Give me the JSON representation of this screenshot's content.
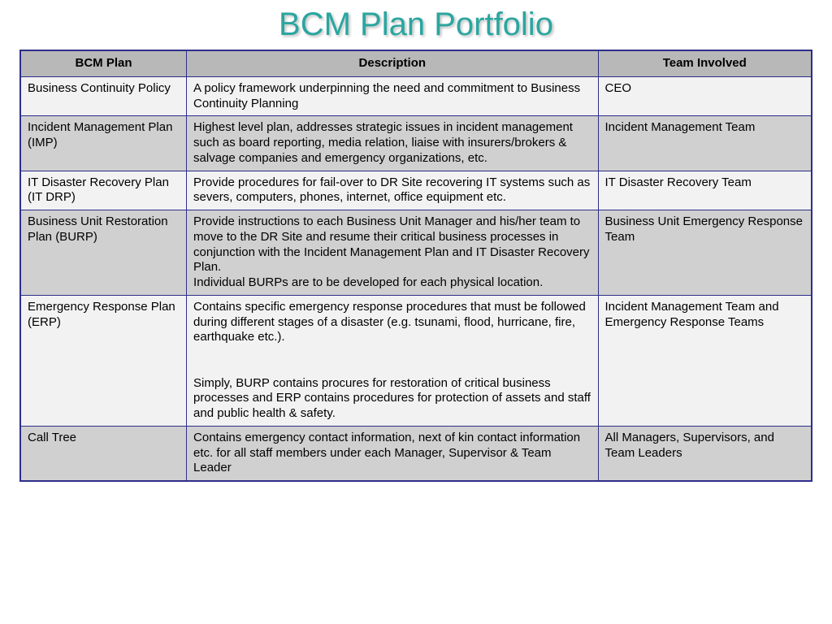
{
  "title": "BCM Plan Portfolio",
  "columns": [
    "BCM Plan",
    "Description",
    "Team Involved"
  ],
  "rows": [
    {
      "plan": "Business Continuity Policy",
      "description": "A policy framework underpinning the need and commitment to Business Continuity Planning",
      "team": "CEO"
    },
    {
      "plan": "Incident Management Plan (IMP)",
      "description": "Highest level plan, addresses strategic issues in incident management such as board reporting, media relation, liaise with insurers/brokers & salvage companies and emergency organizations, etc.",
      "team": "Incident Management Team"
    },
    {
      "plan": "IT Disaster Recovery Plan (IT DRP)",
      "description": "Provide procedures for fail-over to DR Site recovering IT systems such as severs, computers, phones, internet, office equipment etc.",
      "team": "IT Disaster Recovery Team"
    },
    {
      "plan": "Business Unit Restoration Plan (BURP)",
      "description": "Provide instructions to each Business Unit Manager and his/her team to move to the DR Site and resume their critical business processes in conjunction with the Incident Management Plan and IT Disaster Recovery Plan.\nIndividual BURPs are to be developed for each physical location.",
      "team": "Business Unit Emergency Response Team"
    },
    {
      "plan": "Emergency Response Plan (ERP)",
      "description": "Contains specific emergency response procedures that must be followed during different stages of a disaster (e.g. tsunami, flood, hurricane, fire, earthquake etc.).\n\nSimply, BURP contains procures for restoration of critical business processes and ERP contains procedures for protection of assets and staff and public health & safety.",
      "team": "Incident Management Team and Emergency Response Teams"
    },
    {
      "plan": "Call Tree",
      "description": "Contains emergency contact information, next of kin contact information etc. for all staff members under each Manager, Supervisor & Team Leader",
      "team": "All Managers, Supervisors, and Team Leaders"
    }
  ],
  "style": {
    "title_color": "#2aa6a0",
    "title_fontsize": 40,
    "border_color": "#2e2e8a",
    "header_bg": "#b8b8b8",
    "row_odd_bg": "#f2f2f2",
    "row_even_bg": "#d0d0d0",
    "text_color": "#000000",
    "cell_fontsize": 15,
    "column_widths_pct": [
      21,
      52,
      27
    ]
  }
}
